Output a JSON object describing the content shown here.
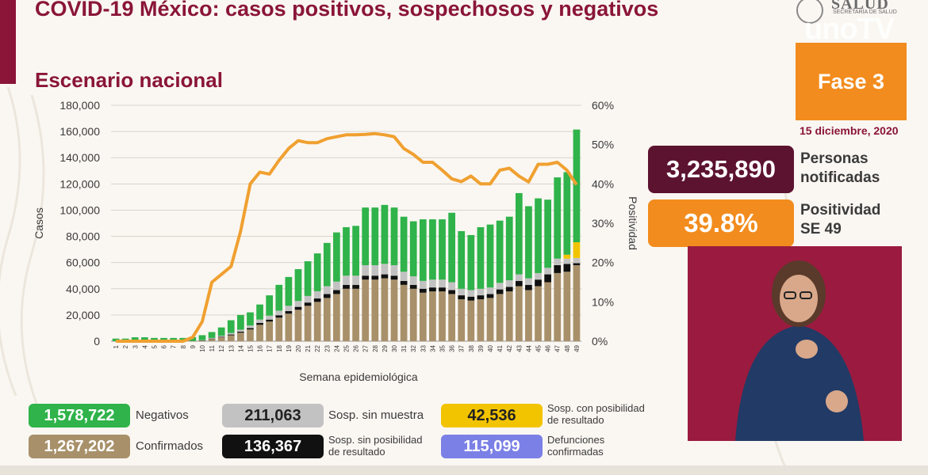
{
  "header": {
    "title": "COVID-19 México: casos positivos, sospechosos y negativos",
    "subtitle": "Escenario nacional"
  },
  "logo": {
    "name": "SALUD",
    "secretaria": "SECRETARÍA DE SALUD"
  },
  "watermark": "unoTV",
  "phase": "Fase 3",
  "date": "15 diciembre, 2020",
  "kpis": {
    "notified_value": "3,235,890",
    "notified_label_1": "Personas",
    "notified_label_2": "notificadas",
    "positivity_value": "39.8%",
    "positivity_label_1": "Positividad",
    "positivity_label_2": "SE 49"
  },
  "legend": {
    "negativos_value": "1,578,722",
    "negativos_label": "Negativos",
    "confirmados_value": "1,267,202",
    "confirmados_label": "Confirmados",
    "sin_muestra_value": "211,063",
    "sin_muestra_label": "Sosp. sin muestra",
    "sin_posib_value": "136,367",
    "sin_posib_label_1": "Sosp. sin posibilidad",
    "sin_posib_label_2": "de resultado",
    "con_posib_value": "42,536",
    "con_posib_label_1": "Sosp. con posibilidad",
    "con_posib_label_2": "de resultado",
    "defunciones_value": "115,099",
    "defunciones_label_1": "Defunciones",
    "defunciones_label_2": "confirmadas"
  },
  "colors": {
    "confirmados": "#a8906a",
    "sin_posib": "#111111",
    "sin_muestra": "#c2c2c2",
    "con_posib": "#f2c400",
    "negativos": "#2fb34a",
    "positividad": "#f0a030",
    "defunciones": "#7b80e6",
    "brand": "#8a1538"
  },
  "chart_data": {
    "type": "bar",
    "stacked": true,
    "xlabel": "Semana epidemiológica",
    "ylabel": "Casos",
    "y2label": "Positividad",
    "ylim": [
      0,
      180000
    ],
    "y2lim": [
      0,
      60
    ],
    "yticks": [
      "0",
      "20,000",
      "40,000",
      "60,000",
      "80,000",
      "100,000",
      "120,000",
      "140,000",
      "160,000",
      "180,000"
    ],
    "y2ticks": [
      "0%",
      "10%",
      "20%",
      "30%",
      "40%",
      "50%",
      "60%"
    ],
    "categories": [
      "1",
      "2",
      "3",
      "4",
      "5",
      "6",
      "7",
      "8",
      "9",
      "10",
      "11",
      "12",
      "13",
      "14",
      "15",
      "16",
      "17",
      "18",
      "19",
      "20",
      "21",
      "22",
      "23",
      "24",
      "25",
      "26",
      "27",
      "28",
      "29",
      "30",
      "31",
      "32",
      "33",
      "34",
      "35",
      "36",
      "37",
      "38",
      "39",
      "40",
      "41",
      "42",
      "43",
      "44",
      "45",
      "46",
      "47",
      "48",
      "49"
    ],
    "series": [
      {
        "name": "Confirmados",
        "values": [
          0,
          0,
          0,
          0,
          0,
          0,
          0,
          0,
          100,
          500,
          1800,
          3000,
          4500,
          6500,
          9000,
          12500,
          15000,
          18000,
          21000,
          24000,
          27000,
          30000,
          33000,
          36000,
          40000,
          40000,
          47000,
          47000,
          48000,
          47000,
          43000,
          40000,
          37000,
          38000,
          38000,
          36000,
          32000,
          31000,
          32000,
          33000,
          36000,
          38000,
          42000,
          39000,
          42000,
          45000,
          52000,
          53000,
          58000
        ]
      },
      {
        "name": "Sosp. sin posibilidad de resultado",
        "values": [
          0,
          0,
          0,
          0,
          0,
          0,
          0,
          0,
          0,
          100,
          200,
          400,
          600,
          800,
          1000,
          1500,
          1500,
          1800,
          2000,
          2200,
          2500,
          2600,
          3000,
          3000,
          3000,
          3000,
          3000,
          3000,
          3000,
          3000,
          3000,
          3000,
          3000,
          3000,
          3000,
          3000,
          3000,
          3000,
          3000,
          3000,
          3500,
          3500,
          4000,
          4000,
          5000,
          6000,
          6000,
          6000,
          1500
        ]
      },
      {
        "name": "Sosp. sin muestra",
        "values": [
          0,
          0,
          0,
          0,
          0,
          0,
          0,
          0,
          0,
          200,
          500,
          800,
          1200,
          1500,
          2000,
          2500,
          3000,
          3500,
          4000,
          4500,
          5000,
          5500,
          6000,
          6500,
          7000,
          7000,
          8000,
          8000,
          8000,
          8000,
          7000,
          6500,
          6000,
          6000,
          6000,
          6000,
          5000,
          5000,
          5000,
          5000,
          5000,
          5000,
          5000,
          5000,
          5000,
          5000,
          5000,
          4000,
          4000
        ]
      },
      {
        "name": "Sosp. con posibilidad de resultado",
        "values": [
          0,
          0,
          0,
          0,
          0,
          0,
          0,
          0,
          0,
          0,
          0,
          0,
          0,
          0,
          0,
          0,
          0,
          0,
          0,
          0,
          0,
          0,
          0,
          0,
          0,
          0,
          0,
          0,
          0,
          0,
          0,
          0,
          0,
          0,
          0,
          0,
          0,
          0,
          0,
          0,
          0,
          0,
          0,
          0,
          0,
          0,
          0,
          3000,
          12000
        ]
      },
      {
        "name": "Negativos",
        "values": [
          2000,
          2000,
          3000,
          3000,
          2500,
          2500,
          2500,
          2500,
          3000,
          3800,
          4500,
          6300,
          9700,
          11200,
          10000,
          11500,
          15500,
          19700,
          22000,
          24300,
          26500,
          28900,
          33000,
          37500,
          37000,
          38000,
          44000,
          44000,
          45000,
          44000,
          42000,
          42000,
          47000,
          46000,
          46000,
          53000,
          44000,
          42000,
          47000,
          48000,
          47500,
          48500,
          62000,
          55000,
          57000,
          52000,
          62000,
          63000,
          86000
        ]
      }
    ],
    "positivity": {
      "name": "Positividad",
      "values": [
        0,
        0,
        0,
        0,
        0,
        0,
        0,
        0,
        1,
        5,
        15,
        17,
        19,
        28,
        40,
        43,
        42.5,
        46,
        49,
        51,
        50.5,
        50.5,
        51.5,
        52,
        52.5,
        52.5,
        52.6,
        52.8,
        52.5,
        52,
        49,
        47.5,
        45.5,
        45.5,
        43.5,
        41.3,
        40.6,
        42,
        40,
        40,
        43.5,
        44,
        42,
        40.5,
        45,
        45,
        45.5,
        43.5,
        39.8
      ]
    }
  }
}
